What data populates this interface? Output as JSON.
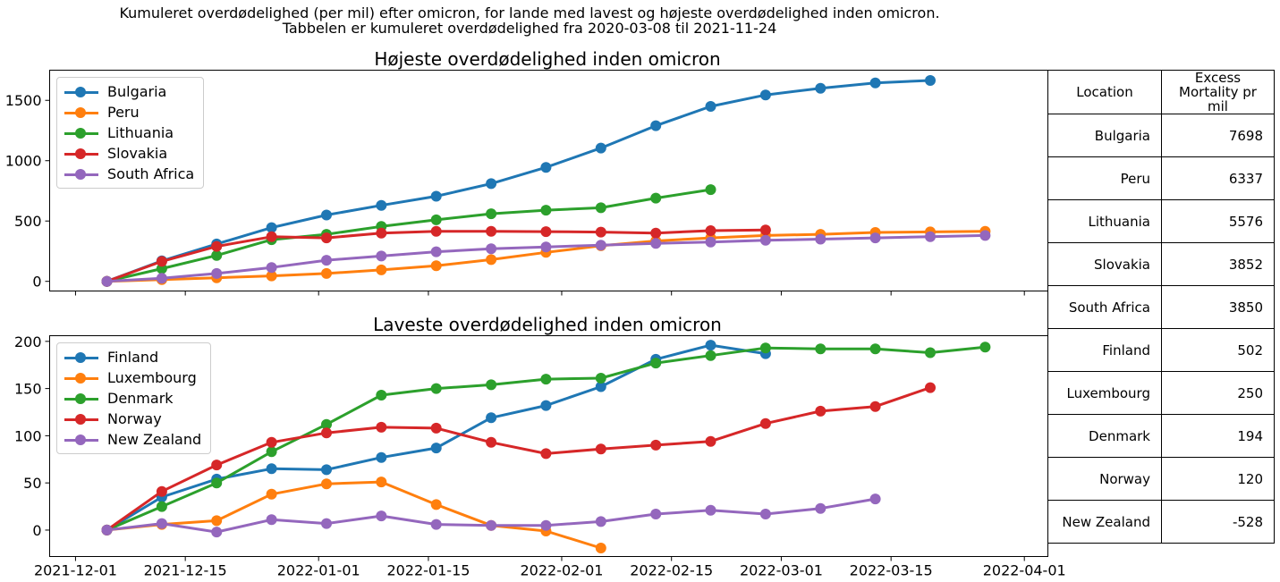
{
  "suptitle": [
    "Kumuleret overdødelighed (per mil) efter omicron, for lande med lavest og højeste overdødelighed inden omicron.",
    "Tabbelen er kumuleret overdødelighed fra 2020-03-08 til 2021-11-24"
  ],
  "colors": {
    "blue": "#1f77b4",
    "orange": "#ff7f0e",
    "green": "#2ca02c",
    "red": "#d62728",
    "purple": "#9467bd"
  },
  "chart_data": [
    {
      "type": "line",
      "title": "Højeste overdødelighed inden omicron",
      "xlabel": "",
      "ylabel": "",
      "ylim": [
        -80,
        1750
      ],
      "yticks": [
        0,
        500,
        1000,
        1500
      ],
      "xticks": [],
      "x_range": [
        "2021-12-01",
        "2022-04-01"
      ],
      "grid": false,
      "legend": "upper left",
      "series": [
        {
          "name": "Bulgaria",
          "color": "#1f77b4",
          "x": [
            "2021-12-05",
            "2021-12-12",
            "2021-12-19",
            "2021-12-26",
            "2022-01-02",
            "2022-01-09",
            "2022-01-16",
            "2022-01-23",
            "2022-01-30",
            "2022-02-06",
            "2022-02-13",
            "2022-02-20",
            "2022-02-27",
            "2022-03-06",
            "2022-03-13",
            "2022-03-20"
          ],
          "values": [
            0,
            170,
            310,
            445,
            550,
            630,
            705,
            810,
            945,
            1105,
            1290,
            1450,
            1545,
            1600,
            1645,
            1665
          ]
        },
        {
          "name": "Peru",
          "color": "#ff7f0e",
          "x": [
            "2021-12-05",
            "2021-12-12",
            "2021-12-19",
            "2021-12-26",
            "2022-01-02",
            "2022-01-09",
            "2022-01-16",
            "2022-01-23",
            "2022-01-30",
            "2022-02-06",
            "2022-02-13",
            "2022-02-20",
            "2022-02-27",
            "2022-03-06",
            "2022-03-13",
            "2022-03-20",
            "2022-03-27"
          ],
          "values": [
            0,
            15,
            30,
            45,
            65,
            95,
            130,
            180,
            240,
            295,
            335,
            360,
            380,
            390,
            405,
            410,
            415
          ]
        },
        {
          "name": "Lithuania",
          "color": "#2ca02c",
          "x": [
            "2021-12-05",
            "2021-12-12",
            "2021-12-19",
            "2021-12-26",
            "2022-01-02",
            "2022-01-09",
            "2022-01-16",
            "2022-01-23",
            "2022-01-30",
            "2022-02-06",
            "2022-02-13",
            "2022-02-20"
          ],
          "values": [
            0,
            105,
            215,
            345,
            390,
            455,
            510,
            560,
            590,
            610,
            690,
            760
          ]
        },
        {
          "name": "Slovakia",
          "color": "#d62728",
          "x": [
            "2021-12-05",
            "2021-12-12",
            "2021-12-19",
            "2021-12-26",
            "2022-01-02",
            "2022-01-09",
            "2022-01-16",
            "2022-01-23",
            "2022-01-30",
            "2022-02-06",
            "2022-02-13",
            "2022-02-20",
            "2022-02-27"
          ],
          "values": [
            0,
            165,
            290,
            370,
            360,
            400,
            415,
            415,
            412,
            408,
            400,
            420,
            425
          ]
        },
        {
          "name": "South Africa",
          "color": "#9467bd",
          "x": [
            "2021-12-05",
            "2021-12-12",
            "2021-12-19",
            "2021-12-26",
            "2022-01-02",
            "2022-01-09",
            "2022-01-16",
            "2022-01-23",
            "2022-01-30",
            "2022-02-06",
            "2022-02-13",
            "2022-02-20",
            "2022-02-27",
            "2022-03-06",
            "2022-03-13",
            "2022-03-20",
            "2022-03-27"
          ],
          "values": [
            0,
            25,
            65,
            115,
            175,
            210,
            245,
            270,
            285,
            300,
            315,
            325,
            340,
            350,
            360,
            370,
            380
          ]
        }
      ]
    },
    {
      "type": "line",
      "title": "Laveste overdødelighed inden omicron",
      "xlabel": "",
      "ylabel": "",
      "ylim": [
        -28,
        206
      ],
      "yticks": [
        0,
        50,
        100,
        150,
        200
      ],
      "xticks": [
        "2021-12-01",
        "2021-12-15",
        "2022-01-01",
        "2022-01-15",
        "2022-02-01",
        "2022-02-15",
        "2022-03-01",
        "2022-03-15",
        "2022-04-01"
      ],
      "x_range": [
        "2021-12-01",
        "2022-04-01"
      ],
      "grid": false,
      "legend": "upper left",
      "series": [
        {
          "name": "Finland",
          "color": "#1f77b4",
          "x": [
            "2021-12-05",
            "2021-12-12",
            "2021-12-19",
            "2021-12-26",
            "2022-01-02",
            "2022-01-09",
            "2022-01-16",
            "2022-01-23",
            "2022-01-30",
            "2022-02-06",
            "2022-02-13",
            "2022-02-20",
            "2022-02-27"
          ],
          "values": [
            0,
            35,
            54,
            65,
            64,
            77,
            87,
            119,
            132,
            152,
            181,
            196,
            187
          ]
        },
        {
          "name": "Luxembourg",
          "color": "#ff7f0e",
          "x": [
            "2021-12-05",
            "2021-12-12",
            "2021-12-19",
            "2021-12-26",
            "2022-01-02",
            "2022-01-09",
            "2022-01-16",
            "2022-01-23",
            "2022-01-30",
            "2022-02-06"
          ],
          "values": [
            0,
            6,
            10,
            38,
            49,
            51,
            27,
            5,
            -1,
            -19
          ]
        },
        {
          "name": "Denmark",
          "color": "#2ca02c",
          "x": [
            "2021-12-05",
            "2021-12-12",
            "2021-12-19",
            "2021-12-26",
            "2022-01-02",
            "2022-01-09",
            "2022-01-16",
            "2022-01-23",
            "2022-01-30",
            "2022-02-06",
            "2022-02-13",
            "2022-02-20",
            "2022-02-27",
            "2022-03-06",
            "2022-03-13",
            "2022-03-20",
            "2022-03-27"
          ],
          "values": [
            0,
            25,
            50,
            83,
            112,
            143,
            150,
            154,
            160,
            161,
            177,
            185,
            193,
            192,
            192,
            188,
            194
          ]
        },
        {
          "name": "Norway",
          "color": "#d62728",
          "x": [
            "2021-12-05",
            "2021-12-12",
            "2021-12-19",
            "2021-12-26",
            "2022-01-02",
            "2022-01-09",
            "2022-01-16",
            "2022-01-23",
            "2022-01-30",
            "2022-02-06",
            "2022-02-13",
            "2022-02-20",
            "2022-02-27",
            "2022-03-06",
            "2022-03-13",
            "2022-03-20"
          ],
          "values": [
            0,
            41,
            69,
            93,
            103,
            109,
            108,
            93,
            81,
            86,
            90,
            94,
            113,
            126,
            131,
            151
          ]
        },
        {
          "name": "New Zealand",
          "color": "#9467bd",
          "x": [
            "2021-12-05",
            "2021-12-12",
            "2021-12-19",
            "2021-12-26",
            "2022-01-02",
            "2022-01-09",
            "2022-01-16",
            "2022-01-23",
            "2022-01-30",
            "2022-02-06",
            "2022-02-13",
            "2022-02-20",
            "2022-02-27",
            "2022-03-06",
            "2022-03-13"
          ],
          "values": [
            0,
            7,
            -2,
            11,
            7,
            15,
            6,
            5,
            5,
            9,
            17,
            21,
            17,
            23,
            33
          ]
        }
      ]
    },
    {
      "type": "table",
      "columns": [
        "Location",
        "Excess Mortality pr mil"
      ],
      "rows": [
        [
          "Bulgaria",
          "7698"
        ],
        [
          "Peru",
          "6337"
        ],
        [
          "Lithuania",
          "5576"
        ],
        [
          "Slovakia",
          "3852"
        ],
        [
          "South Africa",
          "3850"
        ],
        [
          "Finland",
          "502"
        ],
        [
          "Luxembourg",
          "250"
        ],
        [
          "Denmark",
          "194"
        ],
        [
          "Norway",
          "120"
        ],
        [
          "New Zealand",
          "-528"
        ]
      ]
    }
  ]
}
